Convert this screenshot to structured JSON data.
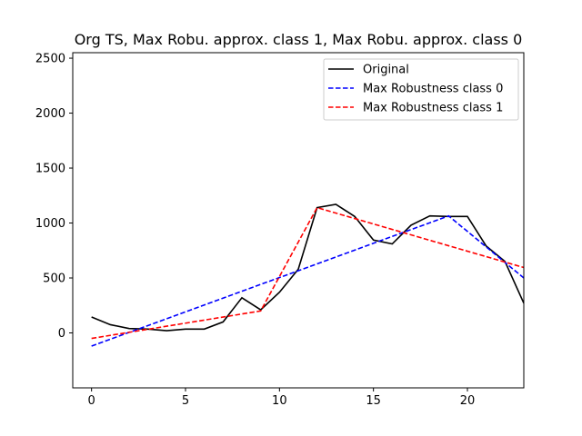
{
  "chart_data": {
    "type": "line",
    "title": "Org TS, Max Robu. approx. class 1, Max Robu. approx. class 0",
    "xlabel": "",
    "ylabel": "",
    "xlim": [
      -1,
      23
    ],
    "ylim": [
      -500,
      2550
    ],
    "xticks": [
      0,
      5,
      10,
      15,
      20
    ],
    "yticks": [
      0,
      500,
      1000,
      1500,
      2000,
      2500
    ],
    "grid": false,
    "legend_position": "top-right",
    "series": [
      {
        "name": "Original",
        "color": "#000000",
        "style": "solid",
        "x": [
          0,
          1,
          2,
          3,
          4,
          5,
          6,
          7,
          8,
          9,
          10,
          11,
          12,
          13,
          14,
          15,
          16,
          17,
          18,
          19,
          20,
          21,
          22,
          23
        ],
        "y": [
          145,
          75,
          40,
          35,
          20,
          35,
          35,
          100,
          320,
          210,
          370,
          580,
          1140,
          1170,
          1060,
          845,
          810,
          980,
          1065,
          1060,
          1060,
          790,
          650,
          270
        ]
      },
      {
        "name": "Max Robustness class 0",
        "color": "#0000ff",
        "style": "dashed",
        "x": [
          0,
          19,
          23
        ],
        "y": [
          -120,
          1065,
          500
        ]
      },
      {
        "name": "Max Robustness class 1",
        "color": "#ff0000",
        "style": "dashed",
        "x": [
          0,
          9,
          12,
          23
        ],
        "y": [
          -50,
          200,
          1140,
          595
        ]
      }
    ]
  }
}
